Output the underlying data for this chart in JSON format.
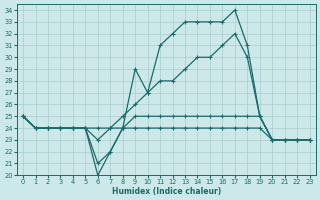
{
  "xlabel": "Humidex (Indice chaleur)",
  "xlim": [
    -0.5,
    23.5
  ],
  "ylim": [
    20,
    34.5
  ],
  "yticks": [
    20,
    21,
    22,
    23,
    24,
    25,
    26,
    27,
    28,
    29,
    30,
    31,
    32,
    33,
    34
  ],
  "xticks": [
    0,
    1,
    2,
    3,
    4,
    5,
    6,
    7,
    8,
    9,
    10,
    11,
    12,
    13,
    14,
    15,
    16,
    17,
    18,
    19,
    20,
    21,
    22,
    23
  ],
  "bg_color": "#cce8e8",
  "grid_color": "#aacccc",
  "line_color": "#1a6b6b",
  "line_width": 0.9,
  "marker": "+",
  "marker_size": 3.5,
  "lines": [
    [
      25,
      24,
      24,
      24,
      24,
      24,
      20,
      22,
      24,
      29,
      27,
      31,
      32,
      33,
      33,
      33,
      33,
      34,
      31,
      25,
      23,
      23,
      23,
      23
    ],
    [
      25,
      24,
      24,
      24,
      24,
      24,
      24,
      24,
      25,
      26,
      27,
      28,
      28,
      29,
      30,
      30,
      31,
      32,
      30,
      25,
      23,
      23,
      23,
      23
    ],
    [
      25,
      24,
      24,
      24,
      24,
      24,
      21,
      22,
      24,
      24,
      24,
      24,
      24,
      24,
      24,
      24,
      24,
      24,
      24,
      24,
      23,
      23,
      23,
      23
    ],
    [
      25,
      24,
      24,
      24,
      24,
      24,
      23,
      24,
      24,
      25,
      25,
      25,
      25,
      25,
      25,
      25,
      25,
      25,
      25,
      25,
      23,
      23,
      23,
      23
    ]
  ]
}
